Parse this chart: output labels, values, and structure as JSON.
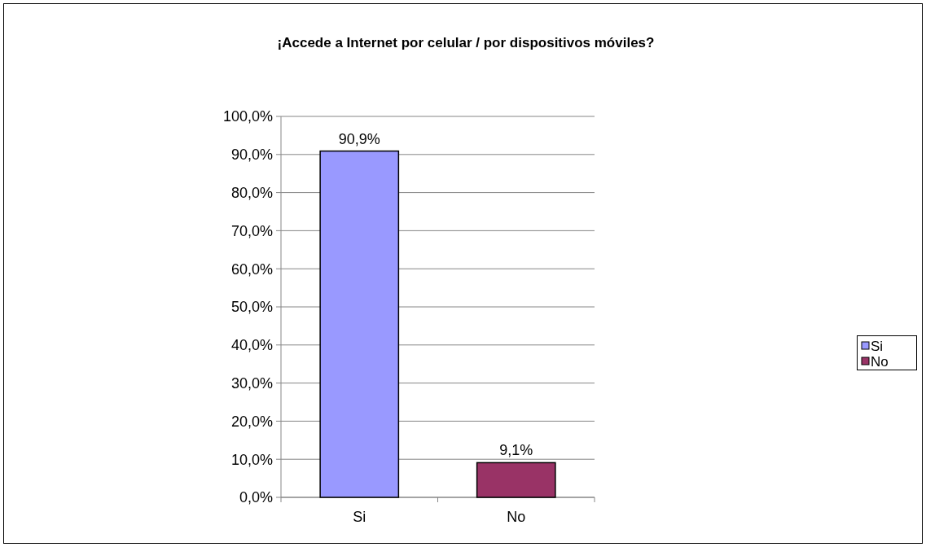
{
  "chart_data": {
    "type": "bar",
    "title": "¡Accede a Internet por celular / por dispositivos móviles?",
    "categories": [
      "Si",
      "No"
    ],
    "stacked": true,
    "series": [
      {
        "name": "Si",
        "color": "#9999ff",
        "values": [
          90.9,
          null
        ],
        "value_labels": [
          "90,9%",
          null
        ]
      },
      {
        "name": "No",
        "color": "#993366",
        "values": [
          null,
          9.1
        ],
        "value_labels": [
          null,
          "9,1%"
        ]
      }
    ],
    "ylim": [
      0,
      100
    ],
    "yticks": [
      {
        "value": 0,
        "label": "0,0%"
      },
      {
        "value": 10,
        "label": "10,0%"
      },
      {
        "value": 20,
        "label": "20,0%"
      },
      {
        "value": 30,
        "label": "30,0%"
      },
      {
        "value": 40,
        "label": "40,0%"
      },
      {
        "value": 50,
        "label": "50,0%"
      },
      {
        "value": 60,
        "label": "60,0%"
      },
      {
        "value": 70,
        "label": "70,0%"
      },
      {
        "value": 80,
        "label": "80,0%"
      },
      {
        "value": 90,
        "label": "90,0%"
      },
      {
        "value": 100,
        "label": "100,0%"
      }
    ],
    "grid": "y",
    "legend": "right"
  }
}
